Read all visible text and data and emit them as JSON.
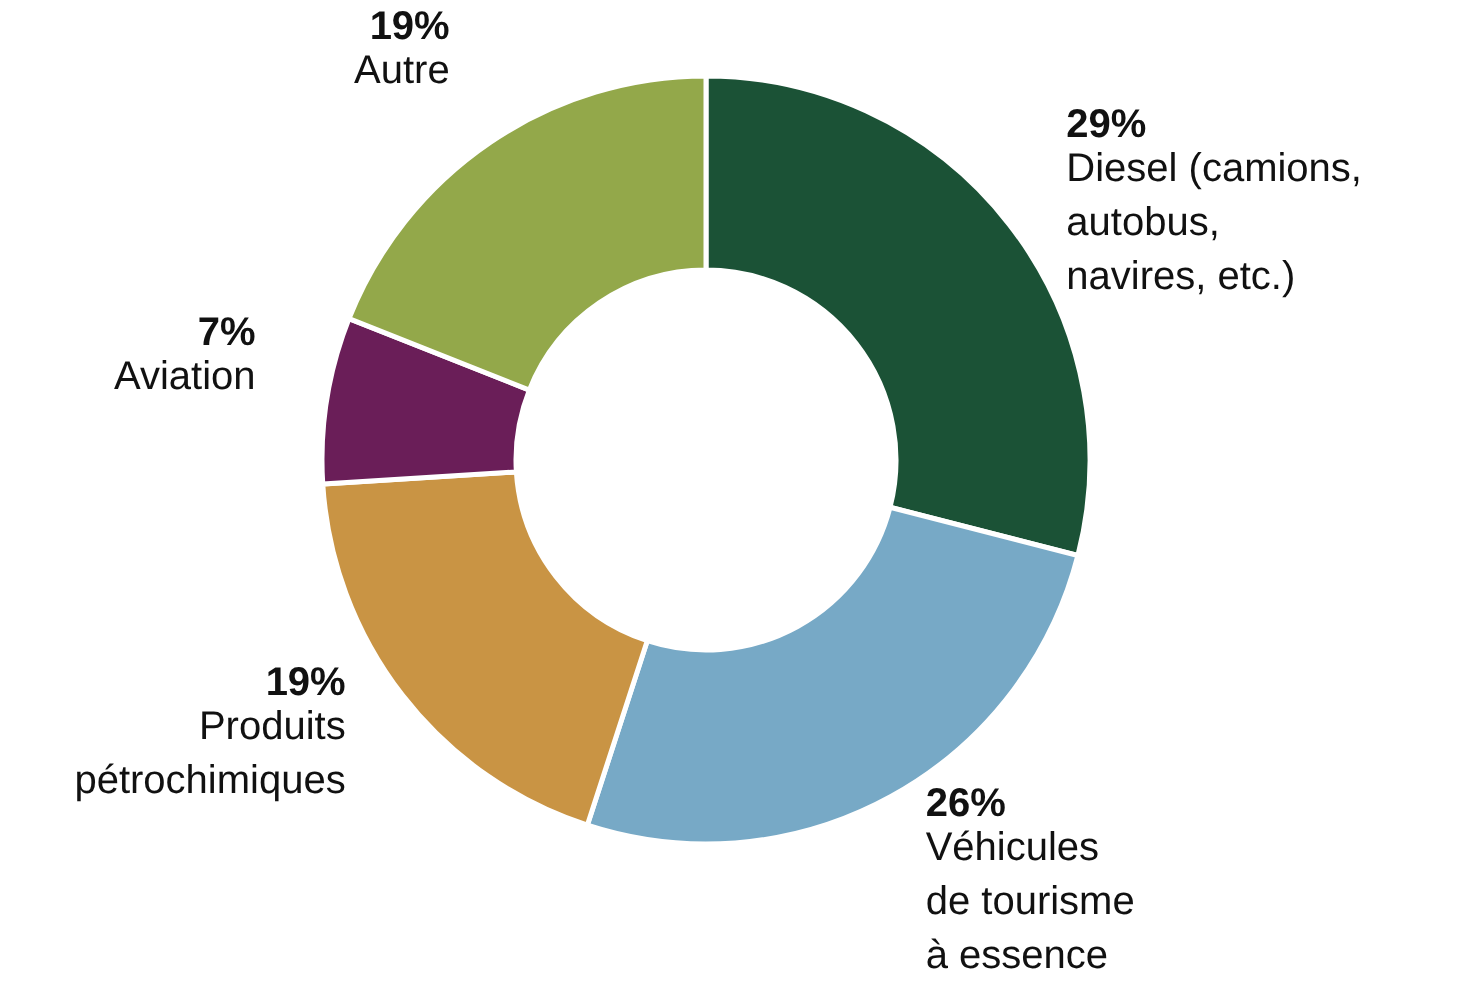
{
  "chart_data": {
    "type": "donut",
    "categories": [
      "Diesel (camions,\nautobus,\nnavires, etc.)",
      "Véhicules\nde tourisme\nà essence",
      "Produits\npétrochimiques",
      "Aviation",
      "Autre"
    ],
    "values": [
      29,
      26,
      19,
      7,
      19
    ],
    "value_labels": [
      "29%",
      "26%",
      "19%",
      "7%",
      "19%"
    ],
    "colors": [
      "#1b5236",
      "#77a9c6",
      "#c99444",
      "#6a1e58",
      "#93a84a"
    ]
  }
}
